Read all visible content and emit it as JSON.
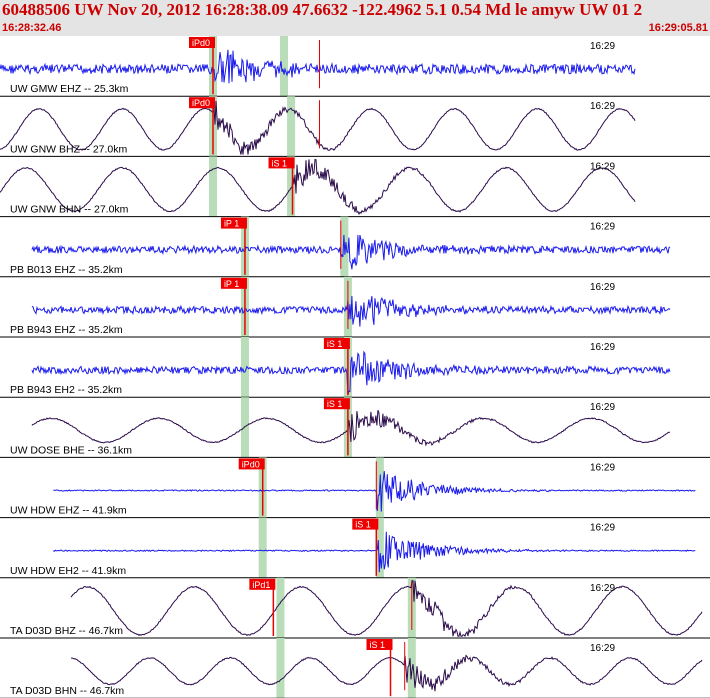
{
  "header": {
    "title": "60488506 UW Nov 20, 2012 16:28:38.09   47.6632 -122.4962  5.1 0.54 Md le amyw UW 01   2",
    "time_start": "16:28:32.46",
    "time_end": "16:29:05.81"
  },
  "colors": {
    "header_bg": "#e4e4e4",
    "header_text": "#cc0000",
    "trace_blue": "#1a1aee",
    "trace_dark": "#2a0a4a",
    "pick_red": "#ee0000",
    "window_green": "#b8ddb8",
    "divider": "#000000"
  },
  "traces": [
    {
      "label": "UW GMW EHZ -- 25.3km",
      "time": "16:29",
      "color": "blue",
      "wave": "noise",
      "amp": 0.08,
      "start": 0.0,
      "end": 0.895,
      "pick": "iPd0",
      "pick_t": 0.3,
      "burst_t": 0.3,
      "s_t": 0.45,
      "green": [
        0.3,
        0.4
      ]
    },
    {
      "label": "UW GNW BHZ -- 27.0km",
      "time": "16:29",
      "color": "dark",
      "wave": "sine",
      "amp": 0.34,
      "start": 0.0,
      "end": 0.895,
      "pick": "iPd0",
      "pick_t": 0.3,
      "burst_t": 0.3,
      "s_t": 0.45,
      "green": [
        0.3,
        0.41
      ]
    },
    {
      "label": "UW GNW BHN -- 27.0km",
      "time": "16:29",
      "color": "dark",
      "wave": "sine",
      "amp": 0.36,
      "start": 0.0,
      "end": 0.895,
      "pick": "iS 1",
      "pick_t": 0.412,
      "burst_t": 0.412,
      "s_t": 0.412,
      "green": [
        0.3,
        0.41
      ]
    },
    {
      "label": "PB B013 EHZ -- 35.2km",
      "time": "16:29",
      "color": "blue",
      "wave": "noise",
      "amp": 0.06,
      "start": 0.045,
      "end": 0.945,
      "pick": "iP 1",
      "pick_t": 0.345,
      "burst_t": 0.48,
      "s_t": 0.48,
      "green": [
        0.345,
        0.485
      ]
    },
    {
      "label": "PB B943 EHZ -- 35.2km",
      "time": "16:29",
      "color": "blue",
      "wave": "noise",
      "amp": 0.06,
      "start": 0.045,
      "end": 0.945,
      "pick": "iP 1",
      "pick_t": 0.345,
      "burst_t": 0.49,
      "s_t": 0.49,
      "green": [
        0.345,
        0.49
      ]
    },
    {
      "label": "PB B943 EH2 -- 35.2km",
      "time": "16:29",
      "color": "blue",
      "wave": "noise",
      "amp": 0.06,
      "start": 0.045,
      "end": 0.945,
      "pick": "iS 1",
      "pick_t": 0.49,
      "burst_t": 0.49,
      "s_t": 0.49,
      "green": [
        0.345,
        0.49
      ]
    },
    {
      "label": "UW DOSE BHE -- 36.1km",
      "time": "16:29",
      "color": "dark",
      "wave": "sine",
      "amp": 0.2,
      "start": 0.045,
      "end": 0.945,
      "pick": "iS 1",
      "pick_t": 0.49,
      "burst_t": 0.49,
      "s_t": 0.49,
      "green": [
        0.345,
        0.49
      ]
    },
    {
      "label": "UW HDW EHZ -- 41.9km",
      "time": "16:29",
      "color": "blue",
      "wave": "flat",
      "amp": 0.02,
      "start": 0.075,
      "end": 0.98,
      "pick": "iPd0",
      "pick_t": 0.37,
      "burst_t": 0.53,
      "s_t": 0.53,
      "green": [
        0.37,
        0.535
      ]
    },
    {
      "label": "UW HDW EH2 -- 41.9km",
      "time": "16:29",
      "color": "blue",
      "wave": "flat",
      "amp": 0.02,
      "start": 0.075,
      "end": 0.98,
      "pick": "iS 1",
      "pick_t": 0.53,
      "burst_t": 0.53,
      "s_t": 0.53,
      "green": [
        0.37,
        0.535
      ]
    },
    {
      "label": "TA D03D BHZ -- 46.7km",
      "time": "16:29",
      "color": "dark",
      "wave": "sine",
      "amp": 0.4,
      "start": 0.1,
      "end": 0.99,
      "pick": "iPd1",
      "pick_t": 0.385,
      "burst_t": 0.58,
      "s_t": 0.58,
      "green": [
        0.395,
        0.58
      ]
    },
    {
      "label": "TA D03D BHN -- 46.7km",
      "time": "16:29",
      "color": "dark",
      "wave": "sine",
      "amp": 0.22,
      "start": 0.1,
      "end": 0.99,
      "pick": "iS 1",
      "pick_t": 0.55,
      "burst_t": 0.57,
      "s_t": 0.57,
      "green": [
        0.395,
        0.58
      ]
    }
  ]
}
